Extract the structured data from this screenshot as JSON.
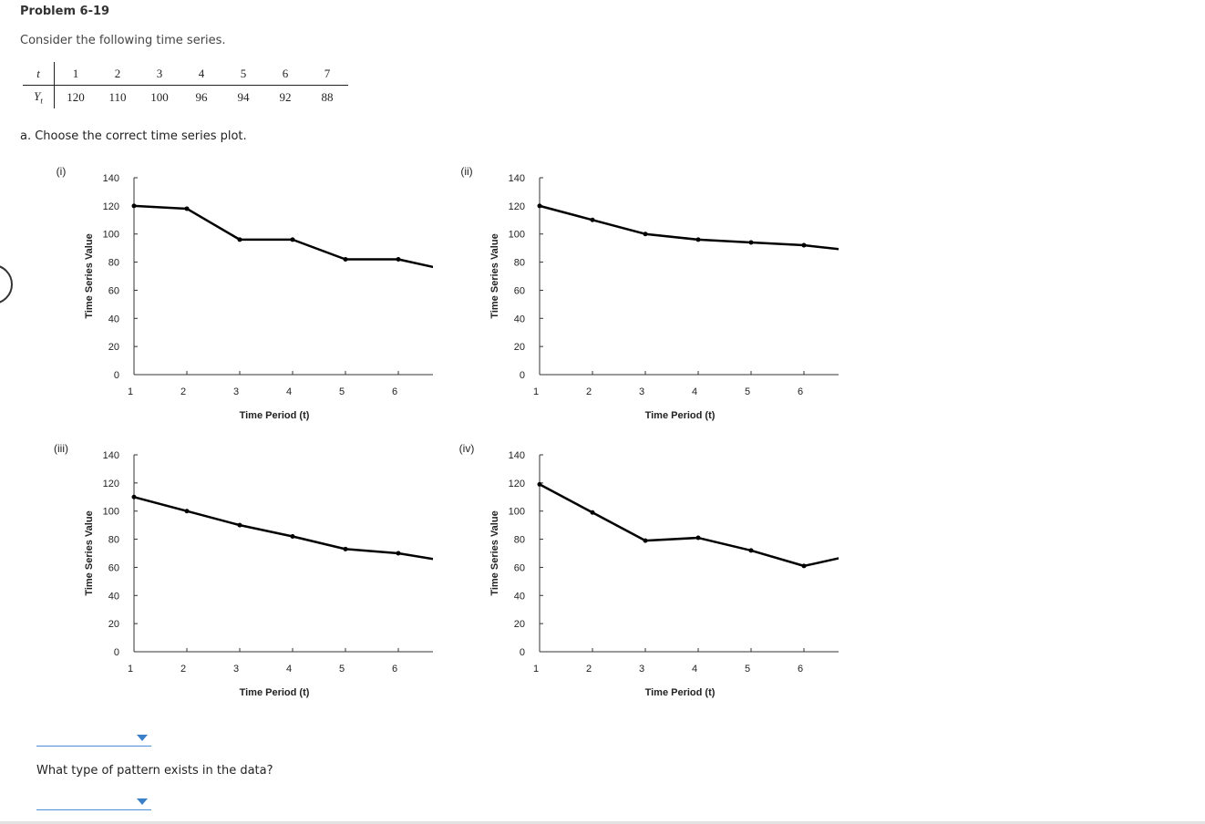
{
  "problem": {
    "title": "Problem 6-19",
    "intro": "Consider the following time series."
  },
  "table": {
    "row1_label": "t",
    "row2_label": "Yt",
    "t": [
      1,
      2,
      3,
      4,
      5,
      6,
      7
    ],
    "y": [
      120,
      110,
      100,
      96,
      94,
      92,
      88
    ]
  },
  "part_a": "a. Choose the correct time series plot.",
  "question2": "What type of pattern exists in the data?",
  "dropdown1": {
    "selected": ""
  },
  "dropdown2": {
    "selected": ""
  },
  "icons": {
    "dropdown_arrow": "caret-down-icon",
    "edge": "circle-icon"
  },
  "colors": {
    "dropdown_accent": "#3a7fc8",
    "line": "#000000"
  },
  "chart_data": [
    {
      "type": "line",
      "label": "(i)",
      "xlabel": "Time Period (t)",
      "ylabel": "Time Series Value",
      "x": [
        1,
        2,
        3,
        4,
        5,
        6,
        7
      ],
      "y": [
        120,
        118,
        96,
        96,
        82,
        82,
        74
      ],
      "ylim": [
        0,
        140
      ],
      "yticks": [
        0,
        20,
        40,
        60,
        80,
        100,
        120,
        140
      ]
    },
    {
      "type": "line",
      "label": "(ii)",
      "xlabel": "Time Period (t)",
      "ylabel": "Time Series Value",
      "x": [
        1,
        2,
        3,
        4,
        5,
        6,
        7
      ],
      "y": [
        120,
        110,
        100,
        96,
        94,
        92,
        88
      ],
      "ylim": [
        0,
        140
      ],
      "yticks": [
        0,
        20,
        40,
        60,
        80,
        100,
        120,
        140
      ]
    },
    {
      "type": "line",
      "label": "(iii)",
      "xlabel": "Time Period (t)",
      "ylabel": "Time Series Value",
      "x": [
        1,
        2,
        3,
        4,
        5,
        6,
        7
      ],
      "y": [
        110,
        100,
        90,
        82,
        73,
        70,
        64
      ],
      "ylim": [
        0,
        140
      ],
      "yticks": [
        0,
        20,
        40,
        60,
        80,
        100,
        120,
        140
      ]
    },
    {
      "type": "line",
      "label": "(iv)",
      "xlabel": "Time Period (t)",
      "ylabel": "Time Series Value",
      "x": [
        1,
        2,
        3,
        4,
        5,
        6,
        7
      ],
      "y": [
        119,
        99,
        79,
        81,
        72,
        61,
        69
      ],
      "ylim": [
        0,
        140
      ],
      "yticks": [
        0,
        20,
        40,
        60,
        80,
        100,
        120,
        140
      ]
    }
  ]
}
